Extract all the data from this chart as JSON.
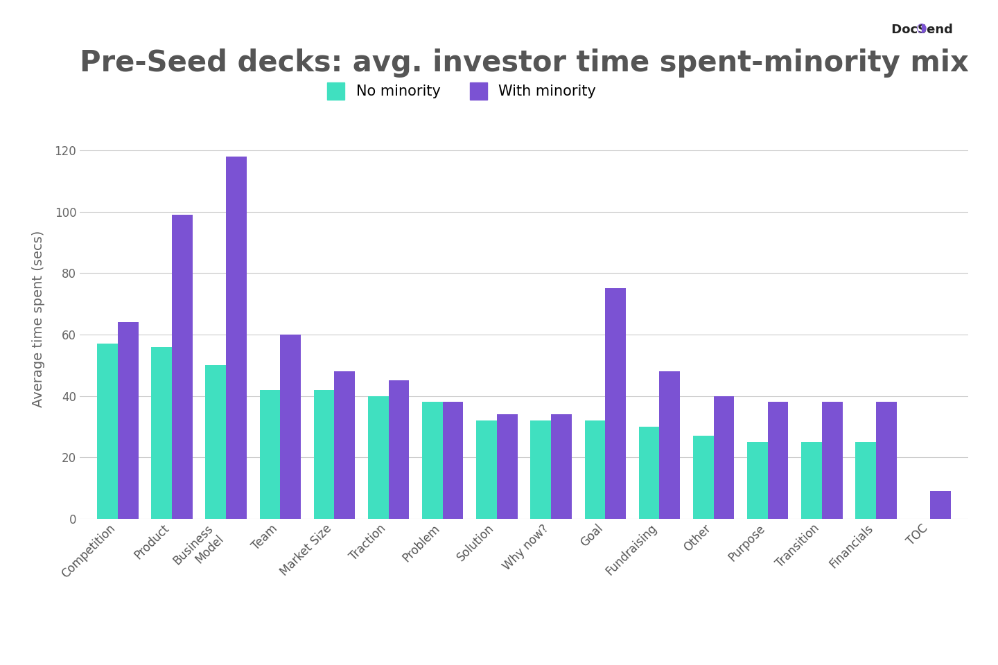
{
  "title": "Pre-Seed decks: avg. investor time spent-minority mix",
  "ylabel": "Average time spent (secs)",
  "categories": [
    "Competition",
    "Product",
    "Business\nModel",
    "Team",
    "Market Size",
    "Traction",
    "Problem",
    "Solution",
    "Why now?",
    "Goal",
    "Fundraising",
    "Other",
    "Purpose",
    "Transition",
    "Financials",
    "TOC"
  ],
  "no_minority": [
    57,
    56,
    50,
    42,
    42,
    40,
    38,
    32,
    32,
    32,
    30,
    27,
    25,
    25,
    25,
    0
  ],
  "with_minority": [
    64,
    99,
    118,
    60,
    48,
    45,
    38,
    34,
    34,
    75,
    48,
    40,
    38,
    38,
    38,
    9
  ],
  "color_no_minority": "#40E0C0",
  "color_with_minority": "#7B52D3",
  "background_color": "#FFFFFF",
  "legend_no_minority": "No minority",
  "legend_with_minority": "With minority",
  "ylim": [
    0,
    130
  ],
  "yticks": [
    0,
    20,
    40,
    60,
    80,
    100,
    120
  ],
  "title_fontsize": 30,
  "axis_fontsize": 14,
  "tick_fontsize": 12,
  "legend_fontsize": 15
}
